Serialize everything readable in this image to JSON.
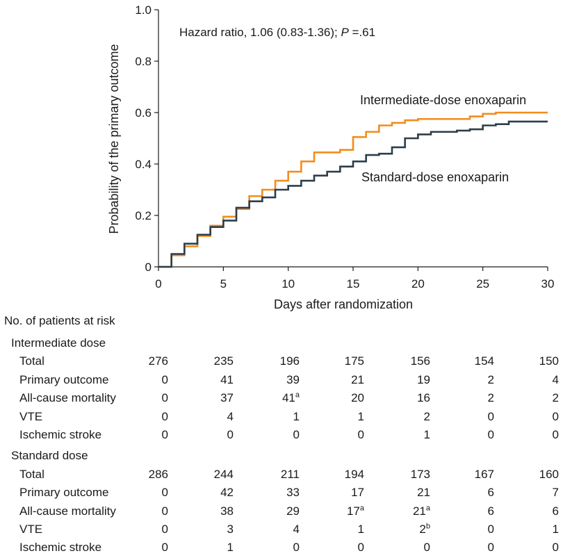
{
  "chart_data": {
    "type": "line",
    "title": "",
    "annotation": {
      "prefix": "Hazard ratio, 1.06 (0.83-1.36); ",
      "p_label": "P",
      "p_value": " =.61"
    },
    "xlabel": "Days after randomization",
    "ylabel": "Probability of the primary outcome",
    "xlim": [
      0,
      30
    ],
    "ylim": [
      0,
      1.0
    ],
    "xticks": [
      0,
      5,
      10,
      15,
      20,
      25,
      30
    ],
    "yticks": [
      0,
      0.2,
      0.4,
      0.6,
      0.8,
      1.0
    ],
    "ytick_labels": [
      "0",
      "0.2",
      "0.4",
      "0.6",
      "0.8",
      "1.0"
    ],
    "grid": false,
    "series": [
      {
        "name": "Intermediate-dose enoxaparin",
        "color": "#f28c1e",
        "step": true,
        "x": [
          0,
          1,
          2,
          3,
          4,
          5,
          6,
          7,
          8,
          9,
          10,
          11,
          12,
          13,
          14,
          15,
          16,
          17,
          18,
          19,
          20,
          21,
          22,
          23,
          24,
          25,
          26,
          27,
          30
        ],
        "y": [
          0,
          0.045,
          0.08,
          0.12,
          0.16,
          0.195,
          0.225,
          0.275,
          0.3,
          0.335,
          0.37,
          0.41,
          0.445,
          0.445,
          0.455,
          0.505,
          0.525,
          0.55,
          0.56,
          0.57,
          0.575,
          0.575,
          0.575,
          0.575,
          0.585,
          0.595,
          0.6,
          0.6,
          0.6
        ]
      },
      {
        "name": "Standard-dose enoxaparin",
        "color": "#2c3e4a",
        "step": true,
        "x": [
          0,
          1,
          2,
          3,
          4,
          5,
          6,
          7,
          8,
          9,
          10,
          11,
          12,
          13,
          14,
          15,
          16,
          17,
          18,
          19,
          20,
          21,
          22,
          23,
          24,
          25,
          26,
          27,
          30
        ],
        "y": [
          0,
          0.05,
          0.09,
          0.125,
          0.155,
          0.18,
          0.23,
          0.255,
          0.27,
          0.3,
          0.315,
          0.335,
          0.355,
          0.37,
          0.39,
          0.41,
          0.435,
          0.44,
          0.465,
          0.5,
          0.515,
          0.525,
          0.525,
          0.53,
          0.535,
          0.55,
          0.555,
          0.565,
          0.565
        ]
      }
    ],
    "series_labels": [
      "Intermediate-dose enoxaparin",
      "Standard-dose enoxaparin"
    ]
  },
  "risk_table": {
    "title": "No. of patients at risk",
    "groups": [
      {
        "name": "Intermediate dose",
        "rows": [
          {
            "label": "Total",
            "values": [
              "276",
              "235",
              "196",
              "175",
              "156",
              "154",
              "150"
            ],
            "sups": [
              "",
              "",
              "",
              "",
              "",
              "",
              ""
            ]
          },
          {
            "label": "Primary outcome",
            "values": [
              "0",
              "41",
              "39",
              "21",
              "19",
              "2",
              "4"
            ],
            "sups": [
              "",
              "",
              "",
              "",
              "",
              "",
              ""
            ]
          },
          {
            "label": "All-cause mortality",
            "values": [
              "0",
              "37",
              "41",
              "20",
              "16",
              "2",
              "2"
            ],
            "sups": [
              "",
              "",
              "a",
              "",
              "",
              "",
              ""
            ]
          },
          {
            "label": "VTE",
            "values": [
              "0",
              "4",
              "1",
              "1",
              "2",
              "0",
              "0"
            ],
            "sups": [
              "",
              "",
              "",
              "",
              "",
              "",
              ""
            ]
          },
          {
            "label": "Ischemic stroke",
            "values": [
              "0",
              "0",
              "0",
              "0",
              "1",
              "0",
              "0"
            ],
            "sups": [
              "",
              "",
              "",
              "",
              "",
              "",
              ""
            ]
          }
        ]
      },
      {
        "name": "Standard dose",
        "rows": [
          {
            "label": "Total",
            "values": [
              "286",
              "244",
              "211",
              "194",
              "173",
              "167",
              "160"
            ],
            "sups": [
              "",
              "",
              "",
              "",
              "",
              "",
              ""
            ]
          },
          {
            "label": "Primary outcome",
            "values": [
              "0",
              "42",
              "33",
              "17",
              "21",
              "6",
              "7"
            ],
            "sups": [
              "",
              "",
              "",
              "",
              "",
              "",
              ""
            ]
          },
          {
            "label": "All-cause mortality",
            "values": [
              "0",
              "38",
              "29",
              "17",
              "21",
              "6",
              "6"
            ],
            "sups": [
              "",
              "",
              "",
              "a",
              "a",
              "",
              ""
            ]
          },
          {
            "label": "VTE",
            "values": [
              "0",
              "3",
              "4",
              "1",
              "2",
              "0",
              "1"
            ],
            "sups": [
              "",
              "",
              "",
              "",
              "b",
              "",
              ""
            ]
          },
          {
            "label": "Ischemic stroke",
            "values": [
              "0",
              "1",
              "0",
              "0",
              "0",
              "0",
              "0"
            ],
            "sups": [
              "",
              "",
              "",
              "",
              "",
              "",
              ""
            ]
          }
        ]
      }
    ]
  }
}
